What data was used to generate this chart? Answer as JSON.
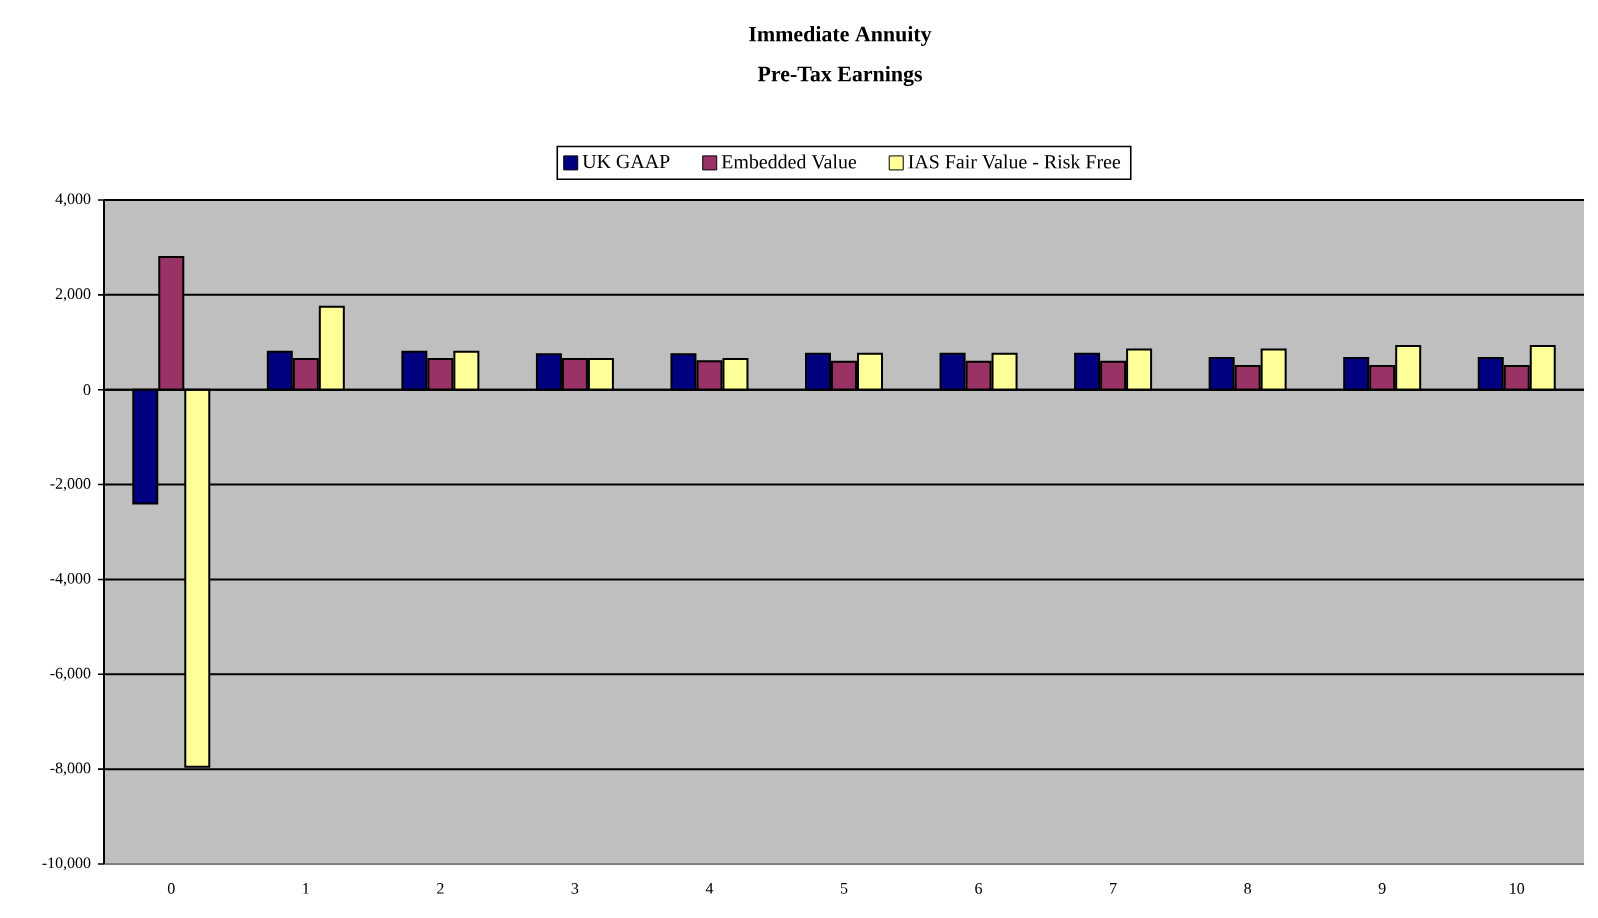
{
  "chart_data": {
    "type": "bar",
    "title": "Immediate Annuity",
    "subtitle": "Pre-Tax Earnings",
    "categories": [
      "0",
      "1",
      "2",
      "3",
      "4",
      "5",
      "6",
      "7",
      "8",
      "9",
      "10"
    ],
    "series": [
      {
        "name": "UK GAAP",
        "color": "#000080",
        "values": [
          -2400,
          800,
          800,
          750,
          750,
          760,
          760,
          760,
          670,
          670,
          670
        ]
      },
      {
        "name": "Embedded Value",
        "color": "#993366",
        "values": [
          2800,
          650,
          650,
          650,
          600,
          590,
          590,
          590,
          500,
          500,
          500
        ]
      },
      {
        "name": "IAS Fair Value - Risk Free",
        "color": "#ffff99",
        "values": [
          -7950,
          1750,
          800,
          650,
          650,
          760,
          760,
          850,
          850,
          920,
          920
        ]
      }
    ],
    "ylim": [
      -10000,
      4000
    ],
    "yticks": [
      {
        "value": -10000,
        "label": "-10,000"
      },
      {
        "value": -8000,
        "label": "-8,000"
      },
      {
        "value": -6000,
        "label": "-6,000"
      },
      {
        "value": -4000,
        "label": "-4,000"
      },
      {
        "value": -2000,
        "label": "-2,000"
      },
      {
        "value": 0,
        "label": "0"
      },
      {
        "value": 2000,
        "label": "2,000"
      },
      {
        "value": 4000,
        "label": "4,000"
      }
    ],
    "grid": "y",
    "legend": "top"
  }
}
